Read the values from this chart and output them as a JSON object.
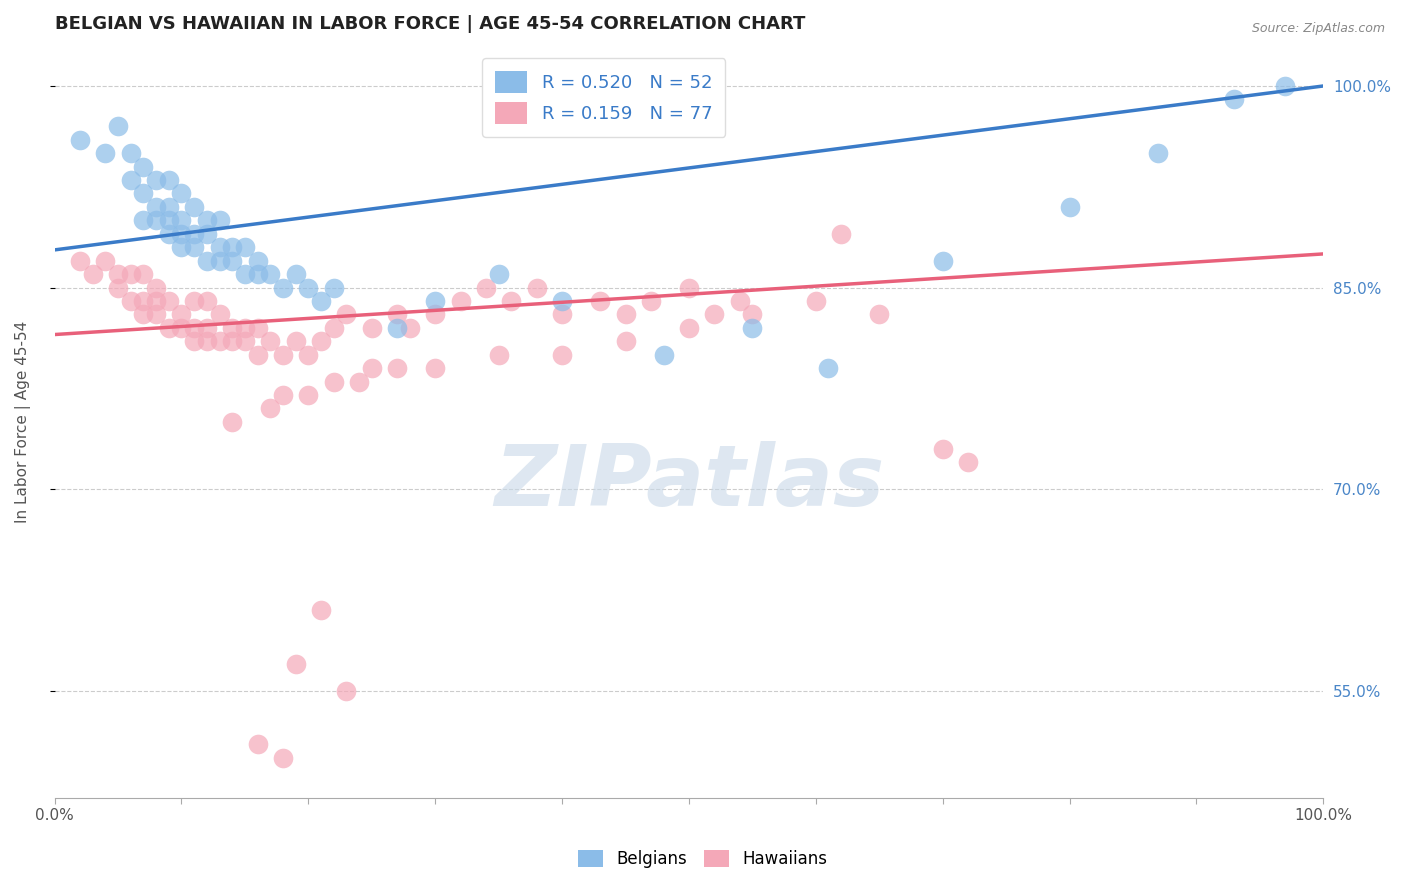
{
  "title": "BELGIAN VS HAWAIIAN IN LABOR FORCE | AGE 45-54 CORRELATION CHART",
  "source_text": "Source: ZipAtlas.com",
  "ylabel": "In Labor Force | Age 45-54",
  "xlim": [
    0.0,
    1.0
  ],
  "ylim": [
    0.47,
    1.03
  ],
  "right_yticks": [
    0.55,
    0.7,
    0.85,
    1.0
  ],
  "right_yticklabels": [
    "55.0%",
    "70.0%",
    "85.0%",
    "100.0%"
  ],
  "belgian_R": 0.52,
  "belgian_N": 52,
  "hawaiian_R": 0.159,
  "hawaiian_N": 77,
  "belgian_color": "#8BBCE8",
  "hawaiian_color": "#F4A8B8",
  "belgian_line_color": "#3A7BC8",
  "hawaiian_line_color": "#E8607A",
  "watermark": "ZIPatlas",
  "watermark_color": "#C8D8E8",
  "legend_color": "#3A7BC8",
  "belgians_label": "Belgians",
  "hawaiians_label": "Hawaiians",
  "belgian_line_x0": 0.0,
  "belgian_line_y0": 0.878,
  "belgian_line_x1": 1.0,
  "belgian_line_y1": 1.0,
  "hawaiian_line_x0": 0.0,
  "hawaiian_line_y0": 0.815,
  "hawaiian_line_x1": 1.0,
  "hawaiian_line_y1": 0.875,
  "belgian_scatter_x": [
    0.02,
    0.04,
    0.05,
    0.06,
    0.06,
    0.07,
    0.07,
    0.07,
    0.08,
    0.08,
    0.08,
    0.09,
    0.09,
    0.09,
    0.09,
    0.1,
    0.1,
    0.1,
    0.1,
    0.11,
    0.11,
    0.11,
    0.12,
    0.12,
    0.12,
    0.13,
    0.13,
    0.13,
    0.14,
    0.14,
    0.15,
    0.15,
    0.16,
    0.16,
    0.17,
    0.18,
    0.19,
    0.2,
    0.21,
    0.22,
    0.27,
    0.3,
    0.35,
    0.4,
    0.48,
    0.55,
    0.61,
    0.7,
    0.8,
    0.87,
    0.93,
    0.97
  ],
  "belgian_scatter_y": [
    0.96,
    0.95,
    0.97,
    0.93,
    0.95,
    0.9,
    0.92,
    0.94,
    0.9,
    0.91,
    0.93,
    0.89,
    0.9,
    0.91,
    0.93,
    0.88,
    0.89,
    0.9,
    0.92,
    0.88,
    0.89,
    0.91,
    0.87,
    0.89,
    0.9,
    0.87,
    0.88,
    0.9,
    0.87,
    0.88,
    0.86,
    0.88,
    0.86,
    0.87,
    0.86,
    0.85,
    0.86,
    0.85,
    0.84,
    0.85,
    0.82,
    0.84,
    0.86,
    0.84,
    0.8,
    0.82,
    0.79,
    0.87,
    0.91,
    0.95,
    0.99,
    1.0
  ],
  "hawaiian_scatter_x": [
    0.02,
    0.03,
    0.04,
    0.05,
    0.05,
    0.06,
    0.06,
    0.07,
    0.07,
    0.07,
    0.08,
    0.08,
    0.08,
    0.09,
    0.09,
    0.1,
    0.1,
    0.11,
    0.11,
    0.11,
    0.12,
    0.12,
    0.12,
    0.13,
    0.13,
    0.14,
    0.14,
    0.15,
    0.15,
    0.16,
    0.16,
    0.17,
    0.18,
    0.19,
    0.2,
    0.21,
    0.22,
    0.23,
    0.25,
    0.27,
    0.28,
    0.3,
    0.32,
    0.34,
    0.36,
    0.38,
    0.4,
    0.43,
    0.45,
    0.47,
    0.5,
    0.52,
    0.54,
    0.3,
    0.35,
    0.4,
    0.45,
    0.5,
    0.55,
    0.6,
    0.62,
    0.65,
    0.7,
    0.72,
    0.18,
    0.22,
    0.25,
    0.14,
    0.17,
    0.2,
    0.24,
    0.27,
    0.21,
    0.19,
    0.23,
    0.16,
    0.18
  ],
  "hawaiian_scatter_y": [
    0.87,
    0.86,
    0.87,
    0.85,
    0.86,
    0.84,
    0.86,
    0.83,
    0.84,
    0.86,
    0.83,
    0.84,
    0.85,
    0.82,
    0.84,
    0.82,
    0.83,
    0.81,
    0.82,
    0.84,
    0.81,
    0.82,
    0.84,
    0.81,
    0.83,
    0.81,
    0.82,
    0.81,
    0.82,
    0.8,
    0.82,
    0.81,
    0.8,
    0.81,
    0.8,
    0.81,
    0.82,
    0.83,
    0.82,
    0.83,
    0.82,
    0.83,
    0.84,
    0.85,
    0.84,
    0.85,
    0.83,
    0.84,
    0.83,
    0.84,
    0.85,
    0.83,
    0.84,
    0.79,
    0.8,
    0.8,
    0.81,
    0.82,
    0.83,
    0.84,
    0.89,
    0.83,
    0.73,
    0.72,
    0.77,
    0.78,
    0.79,
    0.75,
    0.76,
    0.77,
    0.78,
    0.79,
    0.61,
    0.57,
    0.55,
    0.51,
    0.5
  ]
}
